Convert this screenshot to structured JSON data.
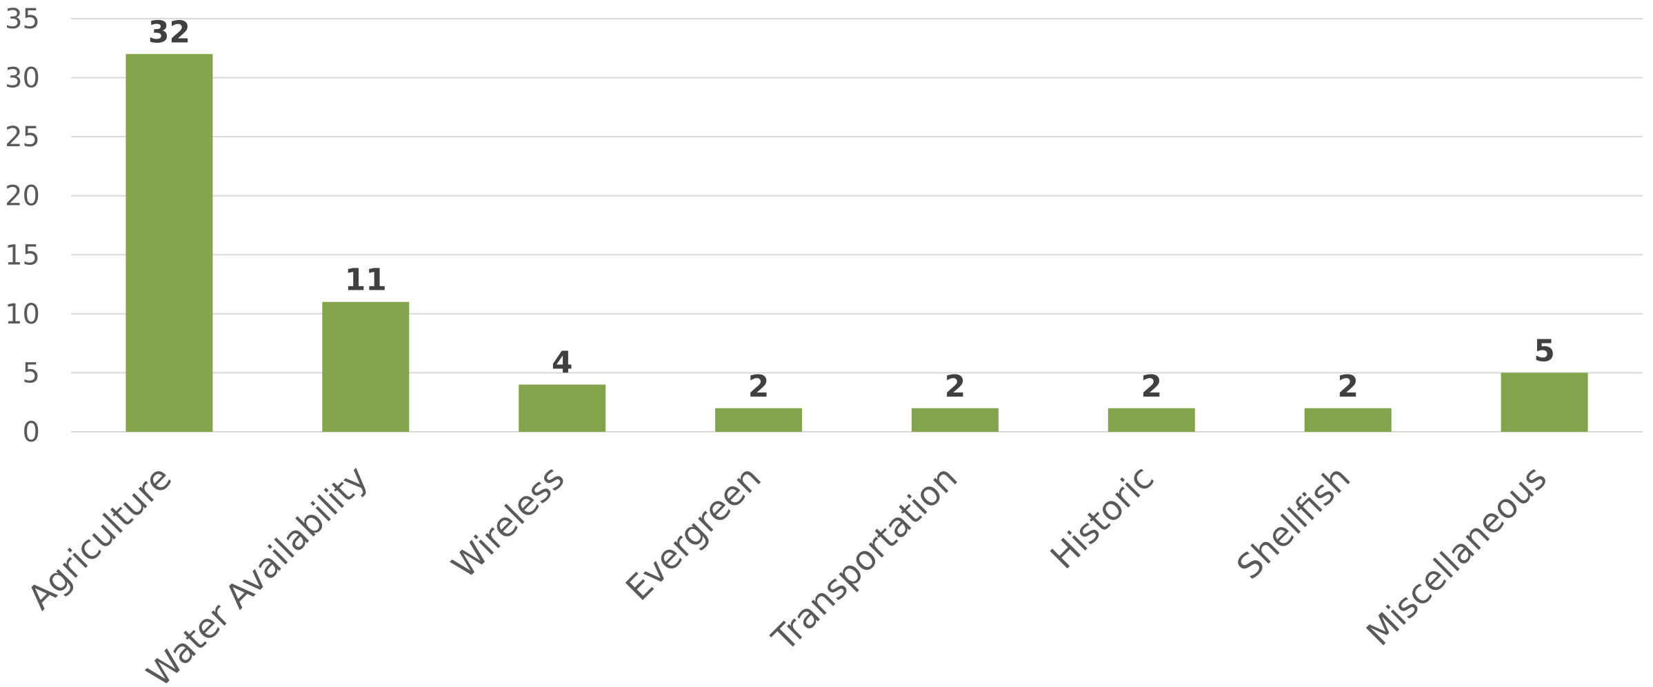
{
  "chart_data": {
    "type": "bar",
    "title": "",
    "xlabel": "",
    "ylabel": "",
    "categories": [
      "Agriculture",
      "Water Availability",
      "Wireless",
      "Evergreen",
      "Transportation",
      "Historic",
      "Shellfish",
      "Miscellaneous"
    ],
    "values": [
      32,
      11,
      4,
      2,
      2,
      2,
      2,
      5
    ],
    "data_labels": [
      "32",
      "11",
      "4",
      "2",
      "2",
      "2",
      "2",
      "5"
    ],
    "ylim": [
      0,
      35
    ],
    "y_ticks": [
      0,
      5,
      10,
      15,
      20,
      25,
      30,
      35
    ],
    "y_tick_labels": [
      "0",
      "5",
      "10",
      "15",
      "20",
      "25",
      "30",
      "35"
    ],
    "grid": true,
    "legend": "none",
    "bar_color": "#84a44b",
    "gridline_color": "#d9d9d9",
    "tick_label_color": "#595959",
    "data_label_color": "#404040"
  }
}
